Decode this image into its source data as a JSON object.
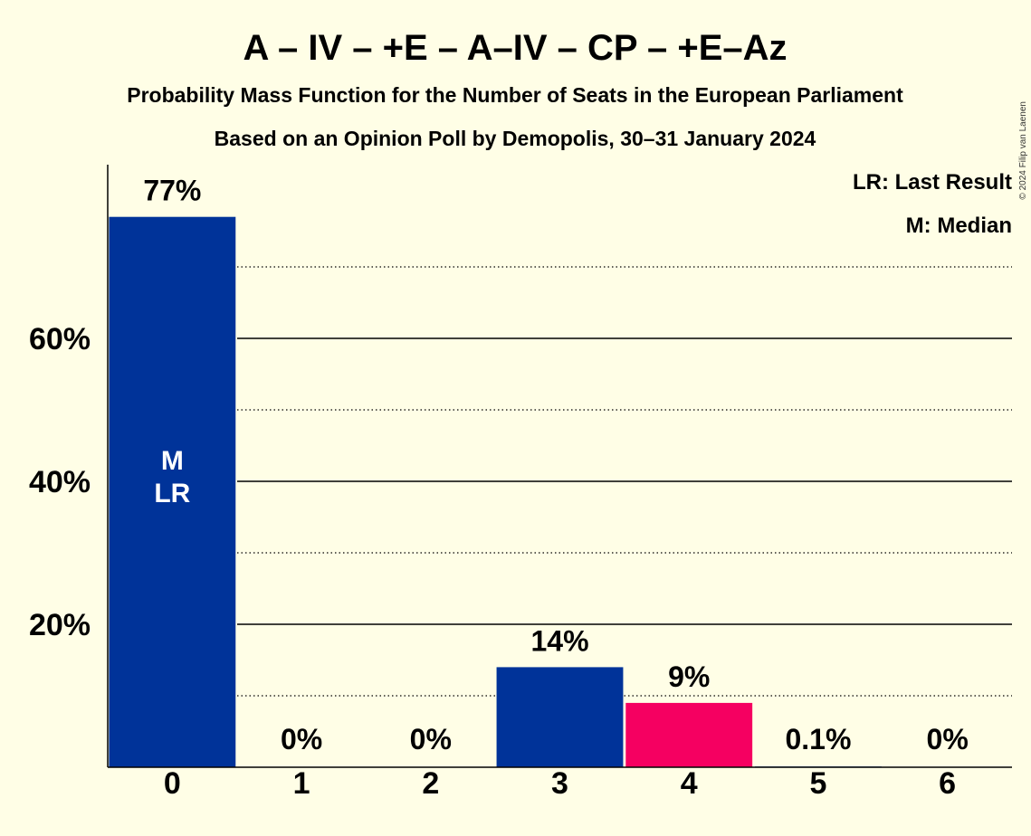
{
  "title": "A – IV – +E – A–IV – CP – +E–Az",
  "subtitle": "Probability Mass Function for the Number of Seats in the European Parliament",
  "subtitle2": "Based on an Opinion Poll by Demopolis, 30–31 January 2024",
  "copyright": "© 2024 Filip van Laenen",
  "legend": {
    "last_result": "LR: Last Result",
    "median": "M: Median"
  },
  "colors": {
    "background": "#FFFEE6",
    "bar_blue": "#003399",
    "bar_pink": "#F50061"
  },
  "chart_data": {
    "type": "bar",
    "categories": [
      "0",
      "1",
      "2",
      "3",
      "4",
      "5",
      "6"
    ],
    "values": [
      77,
      0,
      0,
      14,
      9,
      0.1,
      0
    ],
    "labels": [
      "77%",
      "0%",
      "0%",
      "14%",
      "9%",
      "0.1%",
      "0%"
    ],
    "bar_colors": [
      "#003399",
      "#003399",
      "#003399",
      "#003399",
      "#F50061",
      "#003399",
      "#003399"
    ],
    "ylim": [
      0,
      84
    ],
    "y_ticks": [
      20,
      40,
      60
    ],
    "y_tick_labels": [
      "20%",
      "40%",
      "60%"
    ],
    "minor_gridlines": [
      10,
      30,
      50,
      70
    ],
    "grid": true,
    "legend_position": "top-right",
    "bar_annotation": {
      "category": "0",
      "lines": [
        "M",
        "LR"
      ]
    }
  }
}
